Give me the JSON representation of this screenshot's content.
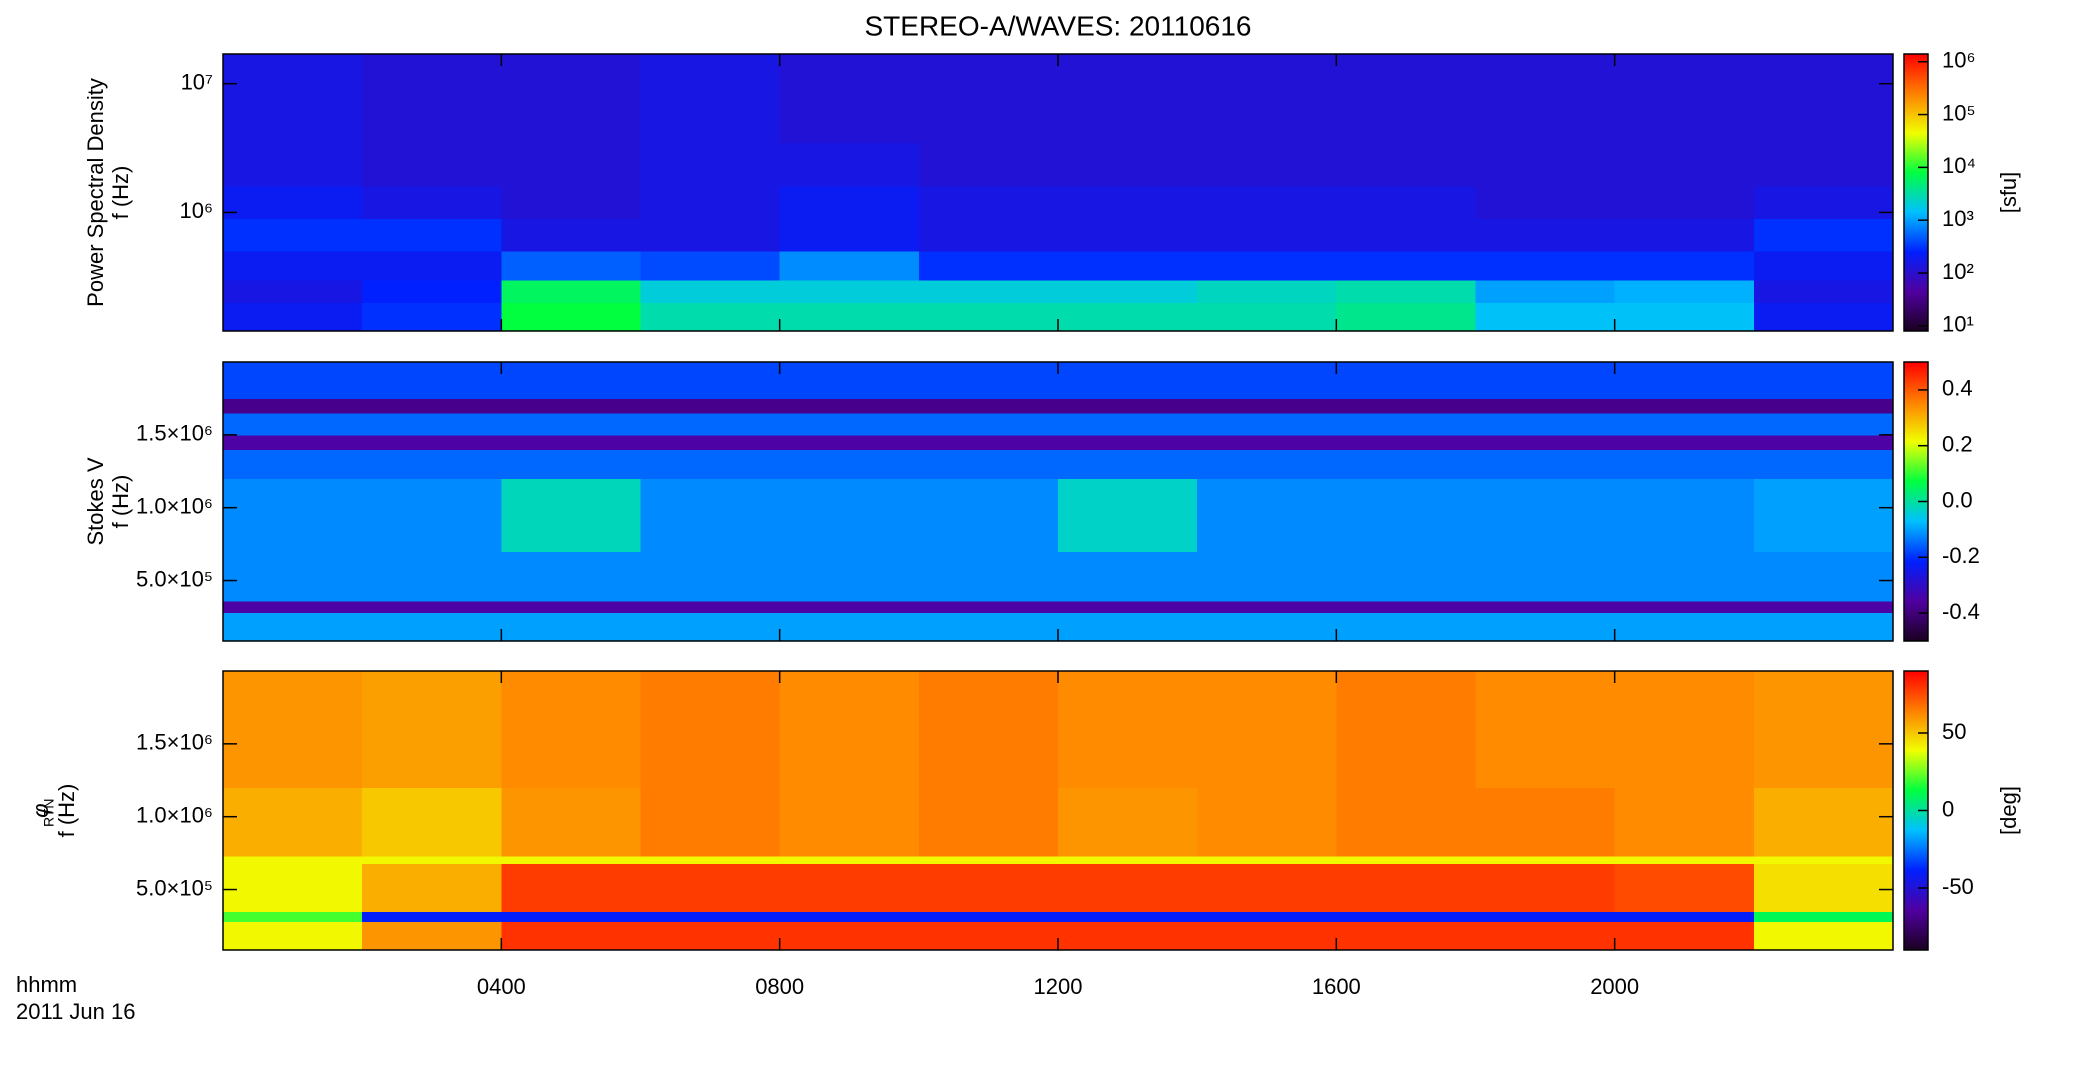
{
  "figure": {
    "title": "STEREO-A/WAVES: 20110616",
    "x_label": "hhmm",
    "date": "2011 Jun 16"
  },
  "chart_data": [
    {
      "type": "heatmap",
      "ylabel": [
        "Power Spectral Density",
        "f (Hz)"
      ],
      "x_edges": [
        0,
        2,
        4,
        6,
        8,
        10,
        12,
        14,
        16,
        18,
        20,
        22,
        24
      ],
      "y_edges": [
        120000,
        200000,
        300000,
        500000,
        900000,
        1600000,
        3500000,
        7000000,
        17000000
      ],
      "z": [
        [
          200,
          300,
          8000,
          3000,
          3000,
          3000,
          3000,
          3000,
          4000,
          1500,
          1500,
          200
        ],
        [
          150,
          250,
          6000,
          2000,
          2000,
          2000,
          2000,
          2500,
          3000,
          1000,
          1200,
          150
        ],
        [
          200,
          200,
          500,
          400,
          800,
          300,
          300,
          300,
          300,
          300,
          300,
          200
        ],
        [
          300,
          300,
          150,
          150,
          200,
          150,
          150,
          150,
          150,
          150,
          150,
          300
        ],
        [
          200,
          150,
          120,
          150,
          200,
          150,
          150,
          150,
          150,
          120,
          120,
          150
        ],
        [
          150,
          120,
          120,
          150,
          150,
          120,
          120,
          120,
          120,
          120,
          120,
          120
        ],
        [
          150,
          120,
          120,
          150,
          120,
          120,
          120,
          120,
          120,
          120,
          120,
          120
        ],
        [
          150,
          120,
          120,
          150,
          120,
          120,
          120,
          120,
          120,
          120,
          120,
          120
        ]
      ],
      "xlim": [
        0,
        24
      ],
      "xticks": [
        4,
        8,
        12,
        16,
        20
      ],
      "ylim": [
        120000,
        17000000
      ],
      "ylog": true,
      "yticks": [
        {
          "value": 1000000,
          "label": "10⁶"
        },
        {
          "value": 10000000,
          "label": "10⁷"
        }
      ],
      "clim": [
        8,
        1400000
      ],
      "clog": true,
      "cticks": [
        {
          "value": 10,
          "label": "10¹"
        },
        {
          "value": 100,
          "label": "10²"
        },
        {
          "value": 1000,
          "label": "10³"
        },
        {
          "value": 10000,
          "label": "10⁴"
        },
        {
          "value": 100000,
          "label": "10⁵"
        },
        {
          "value": 1000000,
          "label": "10⁶"
        }
      ],
      "clabel": "[sfu]",
      "colormap": [
        "#1a0020",
        "#5000a0",
        "#0020ff",
        "#00c0ff",
        "#00ff40",
        "#f0ff00",
        "#ff8000",
        "#ff0000"
      ]
    },
    {
      "type": "heatmap",
      "ylabel": [
        "Stokes V",
        "f (Hz)"
      ],
      "x_edges": [
        0,
        2,
        4,
        6,
        8,
        10,
        12,
        14,
        16,
        18,
        20,
        22,
        24
      ],
      "y_edges": [
        85000,
        280000,
        360000,
        700000,
        1200000,
        1400000,
        1500000,
        1650000,
        1750000,
        2000000
      ],
      "z": [
        [
          -0.1,
          -0.1,
          -0.1,
          -0.1,
          -0.1,
          -0.1,
          -0.1,
          -0.1,
          -0.1,
          -0.1,
          -0.1,
          -0.1
        ],
        [
          -0.35,
          -0.35,
          -0.35,
          -0.35,
          -0.35,
          -0.35,
          -0.35,
          -0.35,
          -0.35,
          -0.35,
          -0.35,
          -0.35
        ],
        [
          -0.12,
          -0.12,
          -0.12,
          -0.12,
          -0.12,
          -0.12,
          -0.12,
          -0.12,
          -0.12,
          -0.12,
          -0.12,
          -0.12
        ],
        [
          -0.12,
          -0.12,
          -0.02,
          -0.12,
          -0.12,
          -0.12,
          -0.03,
          -0.12,
          -0.12,
          -0.12,
          -0.12,
          -0.1
        ],
        [
          -0.15,
          -0.15,
          -0.15,
          -0.15,
          -0.15,
          -0.15,
          -0.15,
          -0.15,
          -0.15,
          -0.15,
          -0.15,
          -0.15
        ],
        [
          -0.35,
          -0.35,
          -0.35,
          -0.35,
          -0.35,
          -0.35,
          -0.35,
          -0.35,
          -0.35,
          -0.35,
          -0.35,
          -0.35
        ],
        [
          -0.15,
          -0.15,
          -0.15,
          -0.15,
          -0.15,
          -0.15,
          -0.15,
          -0.15,
          -0.15,
          -0.15,
          -0.15,
          -0.15
        ],
        [
          -0.38,
          -0.38,
          -0.38,
          -0.38,
          -0.38,
          -0.38,
          -0.38,
          -0.38,
          -0.38,
          -0.38,
          -0.38,
          -0.38
        ],
        [
          -0.18,
          -0.18,
          -0.18,
          -0.18,
          -0.18,
          -0.18,
          -0.18,
          -0.18,
          -0.18,
          -0.18,
          -0.18,
          -0.18
        ]
      ],
      "xlim": [
        0,
        24
      ],
      "xticks": [
        4,
        8,
        12,
        16,
        20
      ],
      "ylim": [
        85000,
        2000000
      ],
      "ylog": false,
      "yticks": [
        {
          "value": 500000,
          "label": "5.0×10⁵"
        },
        {
          "value": 1000000,
          "label": "1.0×10⁶"
        },
        {
          "value": 1500000,
          "label": "1.5×10⁶"
        }
      ],
      "clim": [
        -0.5,
        0.5
      ],
      "clog": false,
      "cticks": [
        -0.4,
        -0.2,
        {
          "value": 0,
          "label": "0.0"
        },
        0.2,
        0.4
      ],
      "colormap": [
        "#1a0020",
        "#5000a0",
        "#0020ff",
        "#00c0ff",
        "#00ff40",
        "#f0ff00",
        "#ff8000",
        "#ff0000"
      ]
    },
    {
      "type": "heatmap",
      "ylabel": [
        "φ",
        "f (Hz)"
      ],
      "ylabel_sub": "RTN",
      "x_edges": [
        0,
        2,
        4,
        6,
        8,
        10,
        12,
        14,
        16,
        18,
        20,
        22,
        24
      ],
      "y_edges": [
        85000,
        280000,
        350000,
        680000,
        730000,
        1200000,
        2000000
      ],
      "z": [
        [
          40,
          60,
          80,
          80,
          80,
          80,
          80,
          80,
          80,
          80,
          80,
          40
        ],
        [
          20,
          -40,
          -40,
          -40,
          -40,
          -40,
          -40,
          -40,
          -40,
          -40,
          -40,
          10
        ],
        [
          40,
          55,
          78,
          78,
          78,
          78,
          78,
          78,
          78,
          78,
          75,
          45
        ],
        [
          40,
          40,
          40,
          40,
          40,
          40,
          40,
          40,
          40,
          40,
          40,
          40
        ],
        [
          55,
          50,
          60,
          65,
          62,
          65,
          60,
          62,
          65,
          65,
          62,
          55
        ],
        [
          60,
          58,
          62,
          65,
          62,
          65,
          62,
          62,
          65,
          62,
          62,
          60
        ]
      ],
      "xlim": [
        0,
        24
      ],
      "xticks": [
        {
          "value": 4,
          "label": "0400"
        },
        {
          "value": 8,
          "label": "0800"
        },
        {
          "value": 12,
          "label": "1200"
        },
        {
          "value": 16,
          "label": "1600"
        },
        {
          "value": 20,
          "label": "2000"
        }
      ],
      "ylim": [
        85000,
        2000000
      ],
      "ylog": false,
      "yticks": [
        {
          "value": 500000,
          "label": "5.0×10⁵"
        },
        {
          "value": 1000000,
          "label": "1.0×10⁶"
        },
        {
          "value": 1500000,
          "label": "1.5×10⁶"
        }
      ],
      "clim": [
        -90,
        90
      ],
      "clog": false,
      "cticks": [
        -50,
        0,
        50
      ],
      "clabel": "[deg]",
      "colormap": [
        "#1a0020",
        "#5000a0",
        "#0020ff",
        "#00c0ff",
        "#00ff40",
        "#f0ff00",
        "#ff8000",
        "#ff0000"
      ]
    }
  ]
}
